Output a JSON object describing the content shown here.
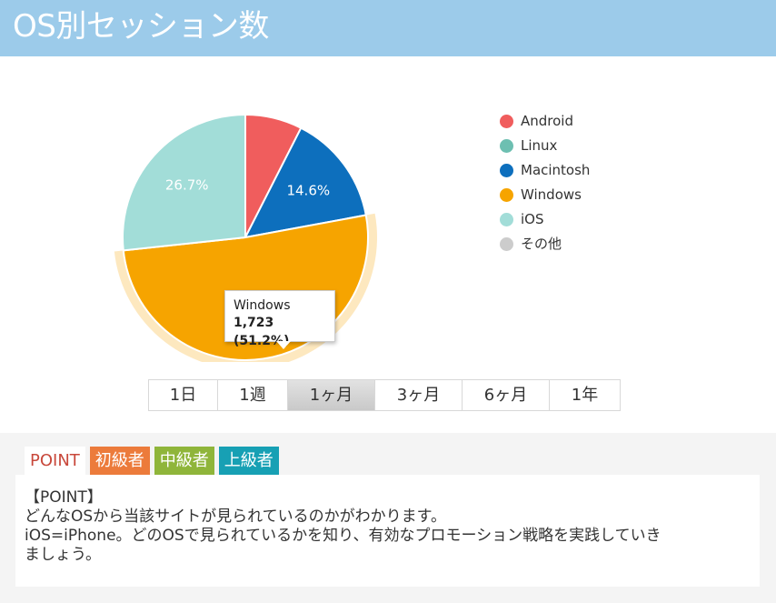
{
  "header": {
    "title": "OS別セッション数"
  },
  "chart_data": {
    "type": "pie",
    "start_angle_deg": 0,
    "direction": "clockwise",
    "slices": [
      {
        "label": "Android",
        "percent": 7.5,
        "color": "#f05d5d"
      },
      {
        "label": "Macintosh",
        "percent": 14.6,
        "data_label": "14.6%",
        "color": "#0d6fbd"
      },
      {
        "label": "Windows",
        "percent": 51.2,
        "color": "#f6a400",
        "highlighted": true
      },
      {
        "label": "iOS",
        "percent": 26.7,
        "data_label": "26.7%",
        "color": "#a2ddd8"
      }
    ],
    "legend": [
      {
        "label": "Android",
        "color": "#f05d5d"
      },
      {
        "label": "Linux",
        "color": "#6dbfb1"
      },
      {
        "label": "Macintosh",
        "color": "#0d6fbd"
      },
      {
        "label": "Windows",
        "color": "#f6a400"
      },
      {
        "label": "iOS",
        "color": "#a2ddd8"
      },
      {
        "label": "その他",
        "color": "#cccccc"
      }
    ],
    "legend_position": "right",
    "tooltip": {
      "name": "Windows",
      "value": "1,723 (51.2%)"
    }
  },
  "periods": {
    "options": [
      "1日",
      "1週",
      "1ヶ月",
      "3ヶ月",
      "6ヶ月",
      "1年"
    ],
    "selected": "1ヶ月"
  },
  "point": {
    "tabs": {
      "point": "POINT",
      "beginner": "初級者",
      "middle": "中級者",
      "advanced": "上級者"
    },
    "lines": [
      "【POINT】",
      "どんなOSから当該サイトが見られているのかがわかります。",
      "iOS=iPhone。どのOSで見られているかを知り、有効なプロモーション戦略を実践していき",
      "ましょう。"
    ]
  }
}
